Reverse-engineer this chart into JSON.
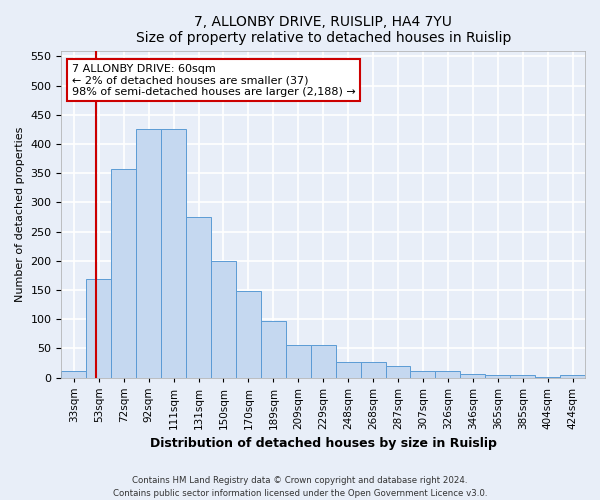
{
  "title1": "7, ALLONBY DRIVE, RUISLIP, HA4 7YU",
  "title2": "Size of property relative to detached houses in Ruislip",
  "xlabel": "Distribution of detached houses by size in Ruislip",
  "ylabel": "Number of detached properties",
  "bar_labels": [
    "33sqm",
    "53sqm",
    "72sqm",
    "92sqm",
    "111sqm",
    "131sqm",
    "150sqm",
    "170sqm",
    "189sqm",
    "209sqm",
    "229sqm",
    "248sqm",
    "268sqm",
    "287sqm",
    "307sqm",
    "326sqm",
    "346sqm",
    "365sqm",
    "385sqm",
    "404sqm",
    "424sqm"
  ],
  "bar_values": [
    12,
    168,
    357,
    425,
    425,
    275,
    200,
    148,
    96,
    55,
    55,
    27,
    26,
    20,
    11,
    11,
    6,
    4,
    4,
    1,
    4
  ],
  "bar_color": "#c5d8f0",
  "bar_edge_color": "#5b9bd5",
  "vline_x": 1.4,
  "vline_color": "#cc0000",
  "annotation_text": "7 ALLONBY DRIVE: 60sqm\n← 2% of detached houses are smaller (37)\n98% of semi-detached houses are larger (2,188) →",
  "annotation_box_color": "#ffffff",
  "annotation_box_edge": "#cc0000",
  "ylim": [
    0,
    560
  ],
  "yticks": [
    0,
    50,
    100,
    150,
    200,
    250,
    300,
    350,
    400,
    450,
    500,
    550
  ],
  "footer": "Contains HM Land Registry data © Crown copyright and database right 2024.\nContains public sector information licensed under the Open Government Licence v3.0.",
  "bg_color": "#e8eef8",
  "grid_color": "#ffffff",
  "title_fontsize": 10,
  "ylabel_fontsize": 8,
  "xlabel_fontsize": 9,
  "tick_fontsize": 7.5
}
